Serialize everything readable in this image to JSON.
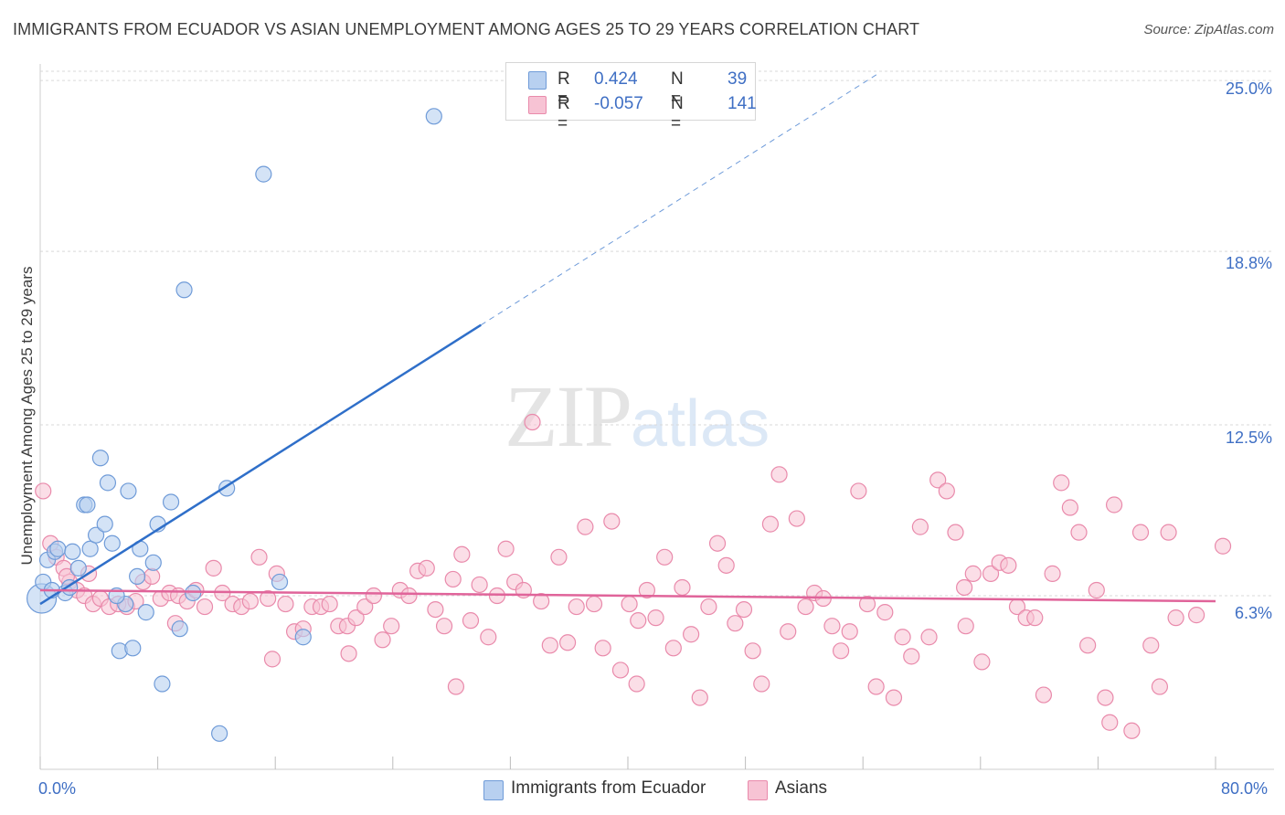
{
  "header": {
    "title": "IMMIGRANTS FROM ECUADOR VS ASIAN UNEMPLOYMENT AMONG AGES 25 TO 29 YEARS CORRELATION CHART",
    "source": "Source: ZipAtlas.com"
  },
  "watermark": {
    "zip": "ZIP",
    "atlas": "atlas"
  },
  "legend": {
    "r_label": "R =",
    "n_label": "N =",
    "series1": {
      "r": "0.424",
      "n": "39"
    },
    "series2": {
      "r": "-0.057",
      "n": "141"
    }
  },
  "colors": {
    "ecuador_fill": "#b8d0f0",
    "ecuador_stroke": "#6f9bd8",
    "ecuador_line": "#2f6fc9",
    "asian_fill": "#f7c3d4",
    "asian_stroke": "#e98aab",
    "asian_line": "#e0649a",
    "axis_text": "#3f6fc4",
    "grid": "#d9d9d9"
  },
  "chart_data": {
    "type": "scatter",
    "title": "IMMIGRANTS FROM ECUADOR VS ASIAN UNEMPLOYMENT AMONG AGES 25 TO 29 YEARS CORRELATION CHART",
    "xlabel": "",
    "ylabel": "Unemployment Among Ages 25 to 29 years",
    "xlim": [
      0,
      80
    ],
    "ylim": [
      0,
      25.6
    ],
    "x_tick_labels": [
      "0.0%",
      "80.0%"
    ],
    "y_ticks": [
      {
        "value": 6.3,
        "label": "6.3%"
      },
      {
        "value": 12.5,
        "label": "12.5%"
      },
      {
        "value": 18.8,
        "label": "18.8%"
      },
      {
        "value": 25.0,
        "label": "25.0%"
      }
    ],
    "series": [
      {
        "name": "Immigrants from Ecuador",
        "trend": {
          "x_start": 0,
          "y_start": 6.0,
          "x_solid_end": 30,
          "x_end": 57,
          "slope": 0.3375
        },
        "points": [
          [
            0.1,
            6.2
          ],
          [
            0.2,
            6.8
          ],
          [
            0.5,
            7.6
          ],
          [
            1.0,
            7.9
          ],
          [
            1.2,
            8.0
          ],
          [
            1.7,
            6.4
          ],
          [
            2.2,
            7.9
          ],
          [
            2.6,
            7.3
          ],
          [
            3.0,
            9.6
          ],
          [
            3.2,
            9.6
          ],
          [
            3.4,
            8.0
          ],
          [
            3.8,
            8.5
          ],
          [
            4.1,
            11.3
          ],
          [
            4.4,
            8.9
          ],
          [
            4.6,
            10.4
          ],
          [
            4.9,
            8.2
          ],
          [
            5.4,
            4.3
          ],
          [
            5.8,
            6.0
          ],
          [
            6.0,
            10.1
          ],
          [
            6.3,
            4.4
          ],
          [
            6.6,
            7.0
          ],
          [
            6.8,
            8.0
          ],
          [
            7.2,
            5.7
          ],
          [
            7.7,
            7.5
          ],
          [
            8.0,
            8.9
          ],
          [
            8.3,
            3.1
          ],
          [
            8.9,
            9.7
          ],
          [
            9.5,
            5.1
          ],
          [
            9.8,
            17.4
          ],
          [
            10.4,
            6.4
          ],
          [
            12.2,
            1.3
          ],
          [
            12.7,
            10.2
          ],
          [
            15.2,
            21.6
          ],
          [
            16.3,
            6.8
          ],
          [
            17.9,
            4.8
          ],
          [
            26.8,
            23.7
          ],
          [
            5.2,
            6.3
          ],
          [
            0.8,
            6.5
          ],
          [
            2.0,
            6.6
          ]
        ]
      },
      {
        "name": "Asians",
        "trend": {
          "x_start": 0,
          "y_start": 6.5,
          "x_end": 80,
          "y_end": 6.1
        },
        "points": [
          [
            0.2,
            10.1
          ],
          [
            0.7,
            8.2
          ],
          [
            1.1,
            7.7
          ],
          [
            1.6,
            7.3
          ],
          [
            2.0,
            6.8
          ],
          [
            2.5,
            6.5
          ],
          [
            3.0,
            6.3
          ],
          [
            3.6,
            6.0
          ],
          [
            4.1,
            6.2
          ],
          [
            4.7,
            5.9
          ],
          [
            5.3,
            6.0
          ],
          [
            5.9,
            5.9
          ],
          [
            6.5,
            6.1
          ],
          [
            7.0,
            6.8
          ],
          [
            7.6,
            7.0
          ],
          [
            8.2,
            6.2
          ],
          [
            8.8,
            6.4
          ],
          [
            9.4,
            6.3
          ],
          [
            10.0,
            6.1
          ],
          [
            10.6,
            6.5
          ],
          [
            11.2,
            5.9
          ],
          [
            11.8,
            7.3
          ],
          [
            12.4,
            6.4
          ],
          [
            13.1,
            6.0
          ],
          [
            13.7,
            5.9
          ],
          [
            14.3,
            6.1
          ],
          [
            14.9,
            7.7
          ],
          [
            15.5,
            6.2
          ],
          [
            16.1,
            7.1
          ],
          [
            16.7,
            6.0
          ],
          [
            17.3,
            5.0
          ],
          [
            17.9,
            5.1
          ],
          [
            18.5,
            5.9
          ],
          [
            19.1,
            5.9
          ],
          [
            19.7,
            6.0
          ],
          [
            20.3,
            5.2
          ],
          [
            20.9,
            5.2
          ],
          [
            21.5,
            5.5
          ],
          [
            22.1,
            5.9
          ],
          [
            22.7,
            6.3
          ],
          [
            23.3,
            4.7
          ],
          [
            23.9,
            5.2
          ],
          [
            24.5,
            6.5
          ],
          [
            25.1,
            6.3
          ],
          [
            25.7,
            7.2
          ],
          [
            26.3,
            7.3
          ],
          [
            26.9,
            5.8
          ],
          [
            27.5,
            5.2
          ],
          [
            28.1,
            6.9
          ],
          [
            28.7,
            7.8
          ],
          [
            29.3,
            5.4
          ],
          [
            29.9,
            6.7
          ],
          [
            30.5,
            4.8
          ],
          [
            31.1,
            6.3
          ],
          [
            31.7,
            8.0
          ],
          [
            32.3,
            6.8
          ],
          [
            32.9,
            6.5
          ],
          [
            33.5,
            12.6
          ],
          [
            34.1,
            6.1
          ],
          [
            34.7,
            4.5
          ],
          [
            35.3,
            7.7
          ],
          [
            35.9,
            4.6
          ],
          [
            36.5,
            5.9
          ],
          [
            37.1,
            8.8
          ],
          [
            37.7,
            6.0
          ],
          [
            38.3,
            4.4
          ],
          [
            38.9,
            9.0
          ],
          [
            39.5,
            3.6
          ],
          [
            40.1,
            6.0
          ],
          [
            40.7,
            5.4
          ],
          [
            41.3,
            6.5
          ],
          [
            41.9,
            5.5
          ],
          [
            42.5,
            7.7
          ],
          [
            43.1,
            4.4
          ],
          [
            43.7,
            6.6
          ],
          [
            44.3,
            4.9
          ],
          [
            44.9,
            2.6
          ],
          [
            45.5,
            5.9
          ],
          [
            46.1,
            8.2
          ],
          [
            46.7,
            7.4
          ],
          [
            47.3,
            5.3
          ],
          [
            47.9,
            5.8
          ],
          [
            48.5,
            4.3
          ],
          [
            49.1,
            3.1
          ],
          [
            49.7,
            8.9
          ],
          [
            50.3,
            10.7
          ],
          [
            50.9,
            5.0
          ],
          [
            51.5,
            9.1
          ],
          [
            52.1,
            5.9
          ],
          [
            52.7,
            6.4
          ],
          [
            53.3,
            6.2
          ],
          [
            53.9,
            5.2
          ],
          [
            54.5,
            4.3
          ],
          [
            55.1,
            5.0
          ],
          [
            55.7,
            10.1
          ],
          [
            56.3,
            6.0
          ],
          [
            56.9,
            3.0
          ],
          [
            57.5,
            5.7
          ],
          [
            58.1,
            2.6
          ],
          [
            58.7,
            4.8
          ],
          [
            59.3,
            4.1
          ],
          [
            59.9,
            8.8
          ],
          [
            60.5,
            4.8
          ],
          [
            61.1,
            10.5
          ],
          [
            61.7,
            10.1
          ],
          [
            62.3,
            8.6
          ],
          [
            62.9,
            6.6
          ],
          [
            63.5,
            7.1
          ],
          [
            64.1,
            3.9
          ],
          [
            64.7,
            7.1
          ],
          [
            65.3,
            7.5
          ],
          [
            65.9,
            7.4
          ],
          [
            66.5,
            5.9
          ],
          [
            67.1,
            5.5
          ],
          [
            67.7,
            5.5
          ],
          [
            68.3,
            2.7
          ],
          [
            68.9,
            7.1
          ],
          [
            69.5,
            10.4
          ],
          [
            70.1,
            9.5
          ],
          [
            70.7,
            8.6
          ],
          [
            71.3,
            4.5
          ],
          [
            71.9,
            6.5
          ],
          [
            72.5,
            2.6
          ],
          [
            72.8,
            1.7
          ],
          [
            73.1,
            9.6
          ],
          [
            74.3,
            1.4
          ],
          [
            74.9,
            8.6
          ],
          [
            75.6,
            4.5
          ],
          [
            76.2,
            3.0
          ],
          [
            76.8,
            8.6
          ],
          [
            78.7,
            5.6
          ],
          [
            80.5,
            8.1
          ],
          [
            77.3,
            5.5
          ],
          [
            63.0,
            5.2
          ],
          [
            40.6,
            3.1
          ],
          [
            28.3,
            3.0
          ],
          [
            21.0,
            4.2
          ],
          [
            15.8,
            4.0
          ],
          [
            9.2,
            5.3
          ],
          [
            1.8,
            7.0
          ],
          [
            3.3,
            7.1
          ]
        ]
      }
    ],
    "legend_position": "top-center"
  }
}
